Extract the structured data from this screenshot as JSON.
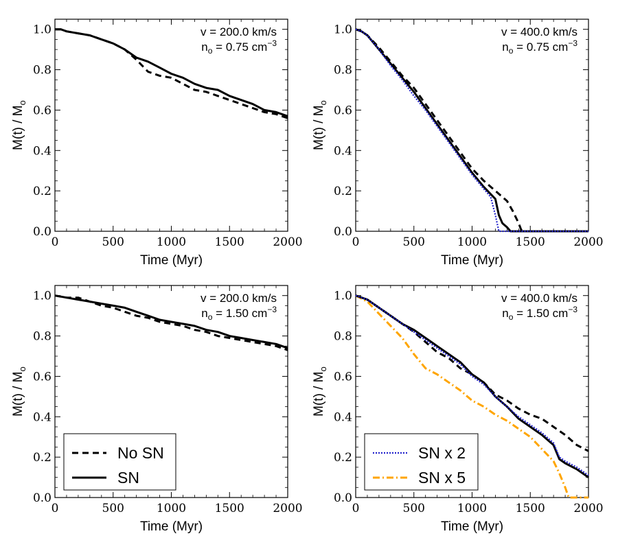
{
  "figure": {
    "panels": [
      {
        "id": "top-left",
        "annotation_line1": "v = 200.0 km/s",
        "annotation_line2_base": "n",
        "annotation_line2_sub": "o",
        "annotation_line2_rest": " = 0.75 cm",
        "annotation_line2_sup": "−3"
      },
      {
        "id": "top-right",
        "annotation_line1": "v = 400.0 km/s",
        "annotation_line2_base": "n",
        "annotation_line2_sub": "o",
        "annotation_line2_rest": " = 0.75 cm",
        "annotation_line2_sup": "−3"
      },
      {
        "id": "bottom-left",
        "annotation_line1": "v = 200.0 km/s",
        "annotation_line2_base": "n",
        "annotation_line2_sub": "o",
        "annotation_line2_rest": " = 1.50 cm",
        "annotation_line2_sup": "−3"
      },
      {
        "id": "bottom-right",
        "annotation_line1": "v = 400.0 km/s",
        "annotation_line2_base": "n",
        "annotation_line2_sub": "o",
        "annotation_line2_rest": " = 1.50 cm",
        "annotation_line2_sup": "−3"
      }
    ],
    "xlabel": "Time (Myr)",
    "ylabel_base": "M(t) / M",
    "ylabel_sub": "o",
    "x_ticks": [
      "0",
      "500",
      "1000",
      "1500",
      "2000"
    ],
    "y_ticks": [
      "0.0",
      "0.2",
      "0.4",
      "0.6",
      "0.8",
      "1.0"
    ]
  },
  "legend_left": [
    {
      "label": "No SN",
      "style": "dashed",
      "color": "#000000"
    },
    {
      "label": "SN",
      "style": "solid",
      "color": "#000000"
    }
  ],
  "legend_right": [
    {
      "label": "SN x 2",
      "style": "dotted",
      "color": "#2222cc"
    },
    {
      "label": "SN x 5",
      "style": "dashdot",
      "color": "#ffa500"
    }
  ],
  "chart_data": [
    {
      "type": "line",
      "panel": "top-left",
      "xlabel": "Time (Myr)",
      "ylabel": "M(t) / Mo",
      "xlim": [
        0,
        2000
      ],
      "ylim": [
        0.0,
        1.05
      ],
      "series": [
        {
          "name": "No SN",
          "style": "dashed",
          "color": "#000000",
          "x": [
            0,
            50,
            100,
            200,
            300,
            400,
            500,
            600,
            700,
            800,
            900,
            1000,
            1100,
            1200,
            1300,
            1400,
            1500,
            1600,
            1700,
            1800,
            1900,
            2000
          ],
          "y": [
            1.0,
            1.0,
            0.99,
            0.98,
            0.97,
            0.95,
            0.93,
            0.9,
            0.85,
            0.79,
            0.77,
            0.76,
            0.73,
            0.7,
            0.69,
            0.67,
            0.65,
            0.63,
            0.61,
            0.59,
            0.58,
            0.56
          ]
        },
        {
          "name": "SN",
          "style": "solid",
          "color": "#000000",
          "x": [
            0,
            50,
            100,
            200,
            300,
            400,
            500,
            600,
            700,
            800,
            900,
            1000,
            1100,
            1200,
            1300,
            1400,
            1500,
            1600,
            1700,
            1800,
            1900,
            2000
          ],
          "y": [
            1.0,
            1.0,
            0.99,
            0.98,
            0.97,
            0.95,
            0.93,
            0.9,
            0.86,
            0.84,
            0.81,
            0.78,
            0.76,
            0.73,
            0.71,
            0.7,
            0.67,
            0.65,
            0.63,
            0.6,
            0.59,
            0.57
          ]
        }
      ]
    },
    {
      "type": "line",
      "panel": "top-right",
      "xlabel": "Time (Myr)",
      "ylabel": "M(t) / Mo",
      "xlim": [
        0,
        2000
      ],
      "ylim": [
        0.0,
        1.05
      ],
      "series": [
        {
          "name": "No SN",
          "style": "dashed",
          "color": "#000000",
          "x": [
            0,
            50,
            100,
            200,
            300,
            400,
            500,
            600,
            700,
            800,
            900,
            1000,
            1100,
            1200,
            1300,
            1350,
            1400,
            1420,
            1430,
            1500,
            1600,
            1800,
            2000
          ],
          "y": [
            1.0,
            0.99,
            0.97,
            0.91,
            0.84,
            0.77,
            0.71,
            0.63,
            0.55,
            0.47,
            0.39,
            0.31,
            0.25,
            0.2,
            0.15,
            0.1,
            0.04,
            0.01,
            0.0,
            0.0,
            0.0,
            0.0,
            0.0
          ]
        },
        {
          "name": "SN",
          "style": "solid",
          "color": "#000000",
          "x": [
            0,
            50,
            100,
            200,
            300,
            400,
            500,
            600,
            700,
            800,
            900,
            1000,
            1100,
            1200,
            1230,
            1260,
            1300,
            1330,
            1400,
            1600,
            1800,
            2000
          ],
          "y": [
            1.0,
            0.99,
            0.97,
            0.9,
            0.83,
            0.76,
            0.69,
            0.61,
            0.53,
            0.45,
            0.37,
            0.29,
            0.22,
            0.16,
            0.08,
            0.04,
            0.02,
            0.0,
            0.0,
            0.0,
            0.0,
            0.0
          ]
        },
        {
          "name": "SN x 2",
          "style": "dotted",
          "color": "#2222cc",
          "x": [
            0,
            50,
            100,
            200,
            300,
            400,
            500,
            600,
            700,
            800,
            900,
            1000,
            1100,
            1160,
            1200,
            1230,
            1300,
            1500,
            1800,
            2000
          ],
          "y": [
            1.0,
            0.99,
            0.97,
            0.9,
            0.82,
            0.75,
            0.67,
            0.6,
            0.52,
            0.44,
            0.36,
            0.28,
            0.21,
            0.17,
            0.08,
            0.0,
            0.0,
            0.0,
            0.0,
            0.0
          ]
        }
      ]
    },
    {
      "type": "line",
      "panel": "bottom-left",
      "xlabel": "Time (Myr)",
      "ylabel": "M(t) / Mo",
      "xlim": [
        0,
        2000
      ],
      "ylim": [
        0.0,
        1.05
      ],
      "series": [
        {
          "name": "No SN",
          "style": "dashed",
          "color": "#000000",
          "x": [
            0,
            100,
            200,
            300,
            400,
            500,
            600,
            700,
            800,
            900,
            1000,
            1100,
            1200,
            1300,
            1400,
            1500,
            1600,
            1700,
            1800,
            1900,
            2000
          ],
          "y": [
            1.0,
            0.99,
            0.99,
            0.97,
            0.95,
            0.94,
            0.92,
            0.9,
            0.89,
            0.87,
            0.86,
            0.85,
            0.83,
            0.82,
            0.8,
            0.79,
            0.78,
            0.77,
            0.76,
            0.75,
            0.73
          ]
        },
        {
          "name": "SN",
          "style": "solid",
          "color": "#000000",
          "x": [
            0,
            100,
            200,
            300,
            400,
            500,
            600,
            700,
            800,
            900,
            1000,
            1100,
            1200,
            1300,
            1400,
            1500,
            1600,
            1700,
            1800,
            1900,
            2000
          ],
          "y": [
            1.0,
            0.99,
            0.98,
            0.97,
            0.96,
            0.95,
            0.94,
            0.92,
            0.9,
            0.88,
            0.87,
            0.86,
            0.85,
            0.83,
            0.82,
            0.8,
            0.79,
            0.78,
            0.77,
            0.76,
            0.74
          ]
        }
      ]
    },
    {
      "type": "line",
      "panel": "bottom-right",
      "xlabel": "Time (Myr)",
      "ylabel": "M(t) / Mo",
      "xlim": [
        0,
        2000
      ],
      "ylim": [
        0.0,
        1.05
      ],
      "series": [
        {
          "name": "No SN",
          "style": "dashed",
          "color": "#000000",
          "x": [
            0,
            100,
            200,
            300,
            400,
            500,
            600,
            700,
            800,
            900,
            1000,
            1100,
            1200,
            1300,
            1400,
            1500,
            1600,
            1700,
            1800,
            1900,
            2000
          ],
          "y": [
            1.0,
            0.98,
            0.94,
            0.9,
            0.86,
            0.82,
            0.77,
            0.72,
            0.69,
            0.64,
            0.61,
            0.57,
            0.51,
            0.48,
            0.44,
            0.41,
            0.39,
            0.35,
            0.31,
            0.26,
            0.23
          ]
        },
        {
          "name": "SN",
          "style": "solid",
          "color": "#000000",
          "x": [
            0,
            100,
            200,
            300,
            400,
            500,
            600,
            700,
            800,
            900,
            1000,
            1100,
            1200,
            1300,
            1400,
            1500,
            1600,
            1700,
            1750,
            1800,
            1900,
            2000
          ],
          "y": [
            1.0,
            0.98,
            0.94,
            0.9,
            0.86,
            0.83,
            0.79,
            0.75,
            0.71,
            0.67,
            0.61,
            0.57,
            0.5,
            0.45,
            0.39,
            0.35,
            0.31,
            0.26,
            0.19,
            0.17,
            0.14,
            0.1
          ]
        },
        {
          "name": "SN x 2",
          "style": "dotted",
          "color": "#2222cc",
          "x": [
            0,
            100,
            200,
            300,
            400,
            500,
            600,
            700,
            800,
            900,
            1000,
            1100,
            1200,
            1300,
            1400,
            1500,
            1600,
            1700,
            1750,
            1800,
            1900,
            2000
          ],
          "y": [
            1.0,
            0.98,
            0.94,
            0.9,
            0.86,
            0.82,
            0.78,
            0.74,
            0.7,
            0.66,
            0.6,
            0.56,
            0.5,
            0.45,
            0.4,
            0.36,
            0.32,
            0.27,
            0.2,
            0.18,
            0.15,
            0.11
          ]
        },
        {
          "name": "SN x 5",
          "style": "dashdot",
          "color": "#ffa500",
          "x": [
            0,
            100,
            200,
            300,
            400,
            500,
            600,
            700,
            800,
            900,
            1000,
            1100,
            1200,
            1300,
            1400,
            1500,
            1600,
            1700,
            1750,
            1800,
            1830,
            2000
          ],
          "y": [
            1.0,
            0.97,
            0.91,
            0.85,
            0.79,
            0.71,
            0.64,
            0.61,
            0.57,
            0.53,
            0.48,
            0.45,
            0.41,
            0.38,
            0.34,
            0.3,
            0.24,
            0.18,
            0.12,
            0.05,
            0.0,
            0.0
          ]
        }
      ]
    }
  ]
}
